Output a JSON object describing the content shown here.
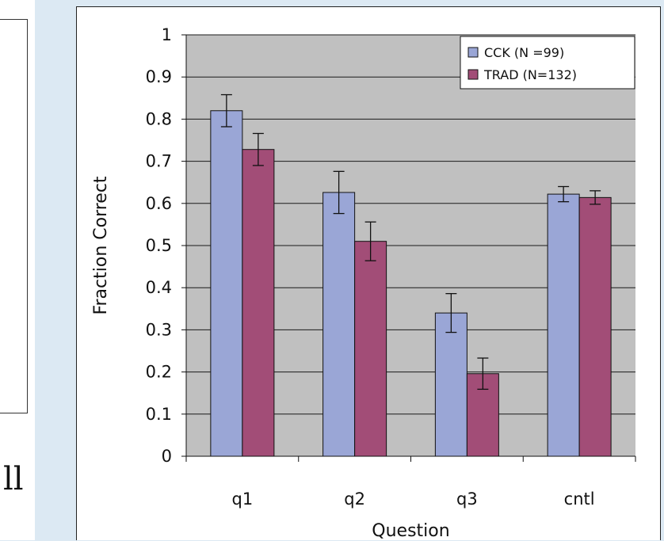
{
  "left_fragment_text": "ll",
  "chart_data": {
    "type": "bar",
    "categories": [
      "q1",
      "q2",
      "q3",
      "cntl"
    ],
    "series": [
      {
        "name": "CCK (N =99)",
        "color": "#9aa6d6",
        "values": [
          0.82,
          0.626,
          0.34,
          0.622
        ],
        "errors": [
          0.038,
          0.05,
          0.046,
          0.018
        ]
      },
      {
        "name": "TRAD (N=132)",
        "color": "#a24d77",
        "values": [
          0.728,
          0.51,
          0.196,
          0.614
        ],
        "errors": [
          0.038,
          0.046,
          0.037,
          0.016
        ]
      }
    ],
    "ylim": [
      0,
      1
    ],
    "yticks": [
      "0",
      "0.1",
      "0.2",
      "0.3",
      "0.4",
      "0.5",
      "0.6",
      "0.7",
      "0.8",
      "0.9",
      "1"
    ],
    "xlabel": "Question",
    "ylabel": "Fraction Correct",
    "grid": true,
    "plot_background": "#c0c0c0",
    "legend_position": "top-right"
  }
}
